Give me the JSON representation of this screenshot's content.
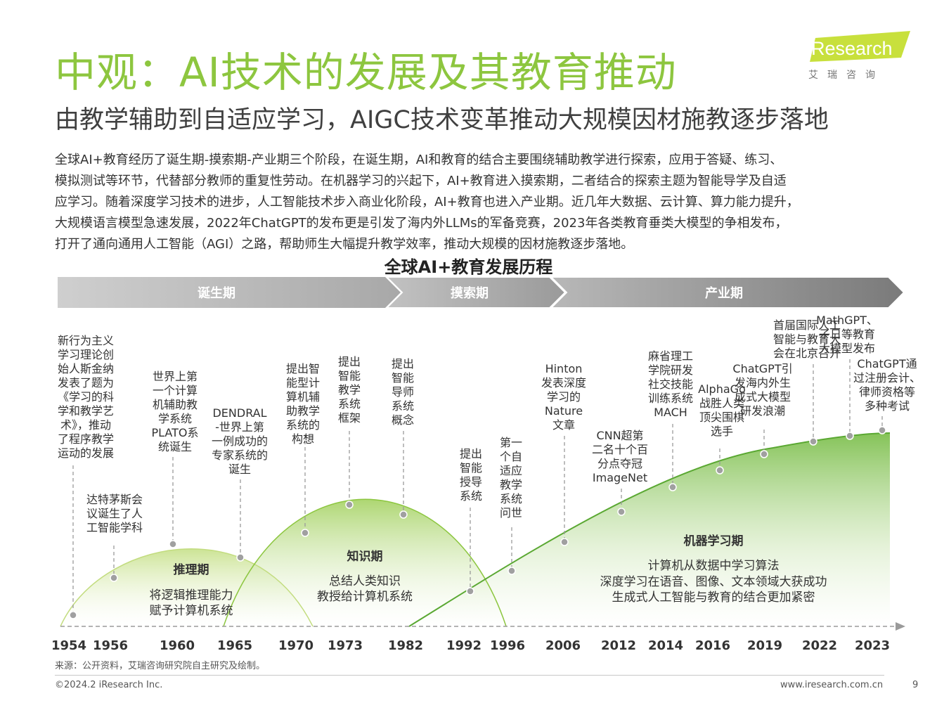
{
  "header": {
    "title": "中观：AI技术的发展及其教育推动",
    "subtitle": "由教学辅助到自适应学习，AIGC技术变革推动大规模因材施教逐步落地"
  },
  "logo": {
    "text": "iResearch",
    "tagline": "艾瑞咨询"
  },
  "paragraph": [
    "全球AI+教育经历了诞生期-摸索期-产业期三个阶段，在诞生期，AI和教育的结合主要围绕辅助教学进行探索，应用于答疑、练习、",
    "模拟测试等环节，代替部分教师的重复性劳动。在机器学习的兴起下，AI+教育进入摸索期，二者结合的探索主题为智能导学及自适",
    "应学习。随着深度学习技术的进步，人工智能技术步入商业化阶段，AI+教育也进入产业期。近几年大数据、云计算、算力能力提升，",
    "大规模语言模型急速发展，2022年ChatGPT的发布更是引发了海内外LLMs的军备竞赛，2023年各类教育垂类大模型的争相发布，",
    "打开了通向通用人工智能（AGI）之路，帮助师生大幅提升教学效率，推动大规模的因材施教逐步落地。"
  ],
  "timeline": {
    "title": "全球AI+教育发展历程",
    "phases": [
      "诞生期",
      "摸索期",
      "产业期"
    ],
    "years": [
      "1954",
      "1956",
      "1960",
      "1965",
      "1970",
      "1973",
      "1982",
      "1992",
      "1996",
      "2006",
      "2012",
      "2014",
      "2016",
      "2019",
      "2022",
      "2023"
    ],
    "waves": [
      {
        "name": "推理期",
        "lines": [
          "将逻辑推理能力",
          "赋予计算机系统"
        ]
      },
      {
        "name": "知识期",
        "lines": [
          "总结人类知识",
          "教授给计算机系统"
        ]
      },
      {
        "name": "机器学习期",
        "lines": [
          "计算机从数据中学习算法",
          "深度学习在语音、图像、文本领域大获成功",
          "生成式人工智能与教育的结合更加紧密"
        ]
      }
    ],
    "events": [
      {
        "lines": [
          "新行为主义",
          "学习理论创",
          "始人斯金纳",
          "发表了题为",
          "《学习的科",
          "学和教学艺",
          "术》，推动",
          "了程序教学",
          "运动的发展"
        ]
      },
      {
        "lines": [
          "达特茅斯会",
          "议诞生了人",
          "工智能学科"
        ]
      },
      {
        "lines": [
          "世界上第",
          "一个计算",
          "机辅助教",
          "学系统",
          "PLATO系",
          "统诞生"
        ]
      },
      {
        "lines": [
          "DENDRAL",
          "-世界上第",
          "一例成功的",
          "专家系统的",
          "诞生"
        ]
      },
      {
        "lines": [
          "提出智",
          "能型计",
          "算机辅",
          "助教学",
          "系统的",
          "构想"
        ]
      },
      {
        "lines": [
          "提出",
          "智能",
          "教学",
          "系统",
          "框架"
        ]
      },
      {
        "lines": [
          "提出",
          "智能",
          "导师",
          "系统",
          "概念"
        ]
      },
      {
        "lines": [
          "提出",
          "智能",
          "授导",
          "系统"
        ]
      },
      {
        "lines": [
          "第一",
          "个自",
          "适应",
          "教学",
          "系统",
          "问世"
        ]
      },
      {
        "lines": [
          "Hinton",
          "发表深度",
          "学习的",
          "Nature",
          "文章"
        ]
      },
      {
        "lines": [
          "CNN超第",
          "二名十个百",
          "分点夺冠",
          "ImageNet"
        ]
      },
      {
        "lines": [
          "麻省理工",
          "学院研发",
          "社交技能",
          "训练系统",
          "MACH"
        ]
      },
      {
        "lines": [
          "AlphaGo",
          "战胜人类",
          "顶尖围棋",
          "选手"
        ]
      },
      {
        "lines": [
          "ChatGPT引",
          "发海内外生",
          "成式大模型",
          "研发浪潮"
        ]
      },
      {
        "lines": [
          "首届国际人工",
          "智能与教育大",
          "会在北京召开"
        ]
      },
      {
        "lines": [
          "MathGPT、",
          "子日等教育",
          "大模型发布"
        ]
      },
      {
        "lines": [
          "ChatGPT通",
          "过注册会计、",
          "律师资格等",
          "多种考试"
        ]
      }
    ]
  },
  "source": "来源：公开资料，艾瑞咨询研究院自主研究及绘制。",
  "footer": {
    "copyright": "©2024.2 iResearch Inc.",
    "website": "www.iresearch.com.cn",
    "page": "9"
  },
  "colors": {
    "accent": "#8dc63f",
    "wave_dark": "#6fb83a",
    "text_dark": "#333333"
  }
}
